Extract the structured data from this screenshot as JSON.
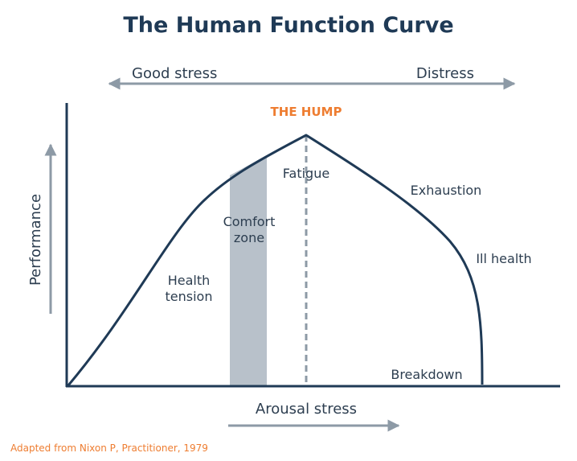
{
  "title": "The Human Function Curve",
  "top_arrow": {
    "left": "Good stress",
    "right": "Distress"
  },
  "hump_label": "THE HUMP",
  "axis": {
    "y": "Performance",
    "x": "Arousal stress"
  },
  "curve_labels": {
    "fatigue": "Fatigue",
    "exhaustion": "Exhaustion",
    "ill_health": "Ill health",
    "breakdown": "Breakdown",
    "health_tension": [
      "Health",
      "tension"
    ],
    "comfort_zone": [
      "Comfort",
      "zone"
    ]
  },
  "credit": "Adapted from Nixon P, Practitioner, 1979",
  "colors": {
    "title": "#1f3a56",
    "text": "#2d3e50",
    "accent": "#ee7d31",
    "arrow": "#8d9aa6",
    "comfort_band": "#b8c1ca",
    "curve": "#1f3a56"
  }
}
